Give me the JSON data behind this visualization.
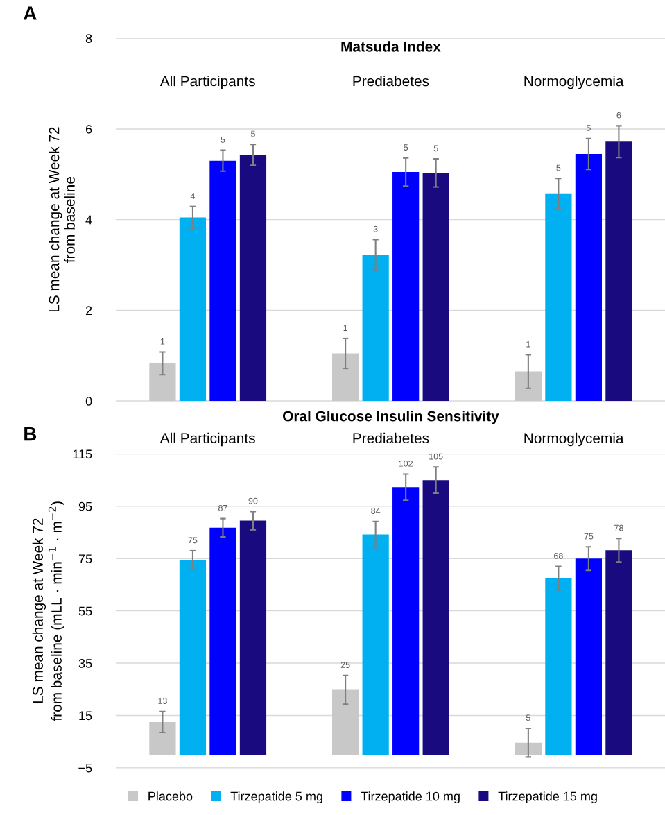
{
  "chart_data": [
    {
      "type": "bar",
      "title": "Matsuda Index",
      "ylabel": "LS mean change at Week 72\nfrom baseline",
      "annotations": [
        "A"
      ],
      "categories": [
        "All Participants",
        "Prediabetes",
        "Normoglycemia"
      ],
      "ylim": [
        0,
        8
      ],
      "yticks": [
        0,
        2,
        4,
        6,
        8
      ],
      "grid": "y",
      "legend": false,
      "series": [
        {
          "color": "#c8c8c8",
          "values": [
            0.83,
            1.05,
            0.65
          ],
          "errors": [
            0.25,
            0.33,
            0.37
          ],
          "value_labels": [
            "1",
            "1",
            "1"
          ]
        },
        {
          "color": "#00b0f0",
          "values": [
            4.05,
            3.23,
            4.58
          ],
          "errors": [
            0.24,
            0.33,
            0.33
          ],
          "value_labels": [
            "4",
            "3",
            "5"
          ]
        },
        {
          "color": "#0000ff",
          "values": [
            5.3,
            5.05,
            5.45
          ],
          "errors": [
            0.23,
            0.31,
            0.34
          ],
          "value_labels": [
            "5",
            "5",
            "5"
          ]
        },
        {
          "color": "#1a0a80",
          "values": [
            5.43,
            5.03,
            5.72
          ],
          "errors": [
            0.23,
            0.31,
            0.35
          ],
          "value_labels": [
            "5",
            "5",
            "6"
          ]
        }
      ]
    },
    {
      "type": "bar",
      "title": "Oral Glucose Insulin Sensitivity",
      "ylabel": "LS mean change at Week 72\nfrom baseline (mLL · min$^{−1}$ · m$^{−2}$)",
      "annotations": [
        "B"
      ],
      "categories": [
        "All Participants",
        "Prediabetes",
        "Normoglycemia"
      ],
      "ylim": [
        -5,
        115
      ],
      "yticks": [
        {
          "value": -5,
          "label": "−5"
        },
        15,
        35,
        55,
        75,
        95,
        115
      ],
      "grid": "y",
      "legend": "bottom",
      "series": [
        {
          "name": "Placebo",
          "color": "#c8c8c8",
          "values": [
            12.5,
            24.8,
            4.6
          ],
          "errors": [
            4.0,
            5.5,
            5.5
          ],
          "value_labels": [
            "13",
            "25",
            "5"
          ]
        },
        {
          "name": "Tirzepatide 5 mg",
          "color": "#00b0f0",
          "values": [
            74.5,
            84.2,
            67.5
          ],
          "errors": [
            3.5,
            5.0,
            4.5
          ],
          "value_labels": [
            "75",
            "84",
            "68"
          ]
        },
        {
          "name": "Tirzepatide 10 mg",
          "color": "#0000ff",
          "values": [
            86.8,
            102.3,
            75.0
          ],
          "errors": [
            3.5,
            5.0,
            4.5
          ],
          "value_labels": [
            "87",
            "102",
            "75"
          ]
        },
        {
          "name": "Tirzepatide 15 mg",
          "color": "#1a0a80",
          "values": [
            89.5,
            105.0,
            78.2
          ],
          "errors": [
            3.5,
            5.0,
            4.5
          ],
          "value_labels": [
            "90",
            "105",
            "78"
          ]
        }
      ]
    }
  ]
}
